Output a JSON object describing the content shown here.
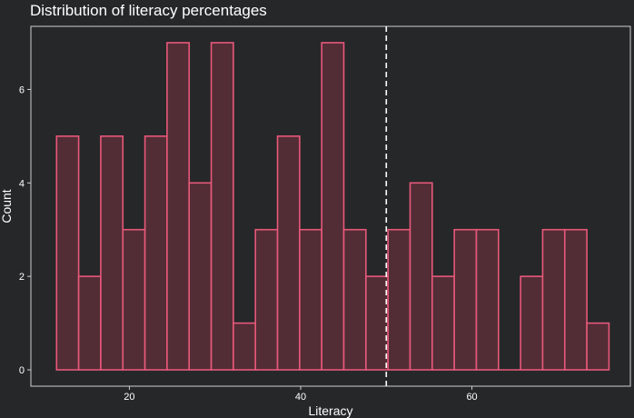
{
  "chart_data": {
    "type": "bar",
    "title": "Distribution of literacy percentages",
    "xlabel": "Literacy",
    "ylabel": "Count",
    "bin_width": 2.58,
    "bins": [
      {
        "x0": 11.5,
        "count": 5
      },
      {
        "x0": 14.08,
        "count": 2
      },
      {
        "x0": 16.66,
        "count": 5
      },
      {
        "x0": 19.24,
        "count": 3
      },
      {
        "x0": 21.82,
        "count": 5
      },
      {
        "x0": 24.4,
        "count": 7
      },
      {
        "x0": 26.98,
        "count": 4
      },
      {
        "x0": 29.56,
        "count": 7
      },
      {
        "x0": 32.14,
        "count": 1
      },
      {
        "x0": 34.72,
        "count": 3
      },
      {
        "x0": 37.3,
        "count": 5
      },
      {
        "x0": 39.88,
        "count": 3
      },
      {
        "x0": 42.46,
        "count": 7
      },
      {
        "x0": 45.04,
        "count": 3
      },
      {
        "x0": 47.62,
        "count": 2
      },
      {
        "x0": 50.2,
        "count": 3
      },
      {
        "x0": 52.78,
        "count": 4
      },
      {
        "x0": 55.36,
        "count": 2
      },
      {
        "x0": 57.94,
        "count": 3
      },
      {
        "x0": 60.52,
        "count": 3
      },
      {
        "x0": 63.1,
        "count": 0
      },
      {
        "x0": 65.68,
        "count": 2
      },
      {
        "x0": 68.26,
        "count": 3
      },
      {
        "x0": 70.84,
        "count": 3
      },
      {
        "x0": 73.42,
        "count": 1
      }
    ],
    "reference_line_x": 50,
    "xlim": [
      8.5,
      78.5
    ],
    "ylim": [
      -0.35,
      7.35
    ],
    "x_ticks": [
      20,
      40,
      60
    ],
    "y_ticks": [
      0,
      2,
      4,
      6
    ],
    "grid": false,
    "colors": {
      "background": "#262729",
      "bar_fill": "#522d36",
      "bar_stroke": "#e8587a",
      "panel_border": "#cfcfcf",
      "reference_line": "#ffffff"
    }
  }
}
